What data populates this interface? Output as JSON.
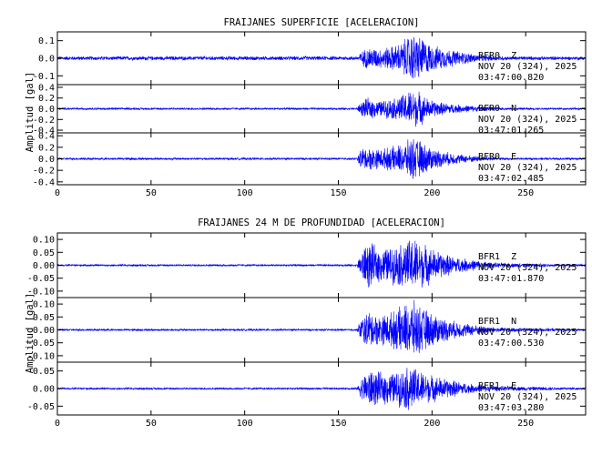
{
  "trace_color": "#0000ff",
  "chart_data": [
    {
      "type": "line",
      "title": "FRAIJANES SUPERFICIE [ACELERACION]",
      "ylabel": "Amplitud [gal]",
      "xlabel": "",
      "xlim": [
        0,
        282
      ],
      "xticks": [
        0,
        50,
        100,
        150,
        200,
        250
      ],
      "grid": false,
      "legend": "none",
      "panels": [
        {
          "station": "BFR0",
          "component": "Z",
          "line1": "BFR0  Z",
          "date": "NOV 20 (324), 2025",
          "time": "03:47:00.820",
          "ylim": [
            -0.15,
            0.15
          ],
          "yticks": [
            -0.1,
            0.0,
            0.1
          ],
          "ytick_labels": [
            "-0.1",
            "0.0",
            "0.1"
          ],
          "background_amplitude": 0.012,
          "envelope": [
            [
              0,
              0.012
            ],
            [
              160,
              0.012
            ],
            [
              162,
              0.04
            ],
            [
              166,
              0.07
            ],
            [
              172,
              0.06
            ],
            [
              180,
              0.08
            ],
            [
              184,
              0.1
            ],
            [
              188,
              0.15
            ],
            [
              192,
              0.15
            ],
            [
              196,
              0.12
            ],
            [
              200,
              0.08
            ],
            [
              208,
              0.06
            ],
            [
              216,
              0.04
            ],
            [
              226,
              0.02
            ],
            [
              240,
              0.012
            ],
            [
              282,
              0.01
            ]
          ]
        },
        {
          "station": "BFR0",
          "component": "N",
          "line1": "BFR0  N",
          "date": "NOV 20 (324), 2025",
          "time": "03:47:01.265",
          "ylim": [
            -0.45,
            0.45
          ],
          "yticks": [
            -0.4,
            -0.2,
            0.0,
            0.2,
            0.4
          ],
          "ytick_labels": [
            "-0.4",
            "-0.2",
            "0.0",
            "0.2",
            "0.4"
          ],
          "background_amplitude": 0.02,
          "envelope": [
            [
              0,
              0.02
            ],
            [
              160,
              0.02
            ],
            [
              162,
              0.14
            ],
            [
              166,
              0.22
            ],
            [
              172,
              0.16
            ],
            [
              180,
              0.22
            ],
            [
              185,
              0.3
            ],
            [
              189,
              0.4
            ],
            [
              193,
              0.36
            ],
            [
              198,
              0.2
            ],
            [
              206,
              0.12
            ],
            [
              216,
              0.08
            ],
            [
              226,
              0.05
            ],
            [
              240,
              0.02
            ],
            [
              282,
              0.02
            ]
          ]
        },
        {
          "station": "BFR0",
          "component": "E",
          "line1": "BFR0  E",
          "date": "NOV 20 (324), 2025",
          "time": "03:47:02.485",
          "ylim": [
            -0.45,
            0.45
          ],
          "yticks": [
            -0.4,
            -0.2,
            0.0,
            0.2,
            0.4
          ],
          "ytick_labels": [
            "-0.4",
            "-0.2",
            "0.0",
            "0.2",
            "0.4"
          ],
          "background_amplitude": 0.02,
          "envelope": [
            [
              0,
              0.02
            ],
            [
              160,
              0.02
            ],
            [
              162,
              0.2
            ],
            [
              166,
              0.22
            ],
            [
              172,
              0.18
            ],
            [
              180,
              0.24
            ],
            [
              186,
              0.3
            ],
            [
              189,
              0.42
            ],
            [
              193,
              0.36
            ],
            [
              198,
              0.24
            ],
            [
              206,
              0.14
            ],
            [
              216,
              0.08
            ],
            [
              226,
              0.05
            ],
            [
              240,
              0.02
            ],
            [
              282,
              0.02
            ]
          ]
        }
      ]
    },
    {
      "type": "line",
      "title": "FRAIJANES 24 M DE PROFUNDIDAD [ACELERACION]",
      "ylabel": "Amplitud [gal]",
      "xlabel": "",
      "xlim": [
        0,
        282
      ],
      "xticks": [
        0,
        50,
        100,
        150,
        200,
        250
      ],
      "grid": false,
      "legend": "none",
      "panels": [
        {
          "station": "BFR1",
          "component": "Z",
          "line1": "BFR1  Z",
          "date": "NOV 20 (324), 2025",
          "time": "03:47:01.870",
          "ylim": [
            -0.125,
            0.125
          ],
          "yticks": [
            -0.1,
            -0.05,
            0.0,
            0.05,
            0.1
          ],
          "ytick_labels": [
            "-0.10",
            "-0.05",
            "0.00",
            "0.05",
            "0.10"
          ],
          "background_amplitude": 0.004,
          "envelope": [
            [
              0,
              0.004
            ],
            [
              160,
              0.004
            ],
            [
              162,
              0.06
            ],
            [
              166,
              0.1
            ],
            [
              172,
              0.07
            ],
            [
              180,
              0.08
            ],
            [
              186,
              0.1
            ],
            [
              190,
              0.12
            ],
            [
              194,
              0.1
            ],
            [
              200,
              0.07
            ],
            [
              210,
              0.04
            ],
            [
              220,
              0.025
            ],
            [
              235,
              0.01
            ],
            [
              282,
              0.004
            ]
          ]
        },
        {
          "station": "BFR1",
          "component": "N",
          "line1": "BFR1  N",
          "date": "NOV 20 (324), 2025",
          "time": "03:47:00.530",
          "ylim": [
            -0.125,
            0.125
          ],
          "yticks": [
            -0.1,
            -0.05,
            0.0,
            0.05,
            0.1
          ],
          "ytick_labels": [
            "-0.10",
            "-0.05",
            "0.00",
            "0.05",
            "0.10"
          ],
          "background_amplitude": 0.004,
          "envelope": [
            [
              0,
              0.004
            ],
            [
              160,
              0.004
            ],
            [
              162,
              0.05
            ],
            [
              166,
              0.08
            ],
            [
              172,
              0.06
            ],
            [
              180,
              0.08
            ],
            [
              186,
              0.11
            ],
            [
              190,
              0.12
            ],
            [
              194,
              0.1
            ],
            [
              200,
              0.07
            ],
            [
              210,
              0.04
            ],
            [
              220,
              0.025
            ],
            [
              235,
              0.01
            ],
            [
              282,
              0.004
            ]
          ]
        },
        {
          "station": "BFR1",
          "component": "E",
          "line1": "BFR1  E",
          "date": "NOV 20 (324), 2025",
          "time": "03:47:03.280",
          "ylim": [
            -0.075,
            0.075
          ],
          "yticks": [
            -0.05,
            0.0,
            0.05
          ],
          "ytick_labels": [
            "-0.05",
            "0.00",
            "0.05"
          ],
          "background_amplitude": 0.003,
          "envelope": [
            [
              0,
              0.003
            ],
            [
              160,
              0.003
            ],
            [
              162,
              0.03
            ],
            [
              166,
              0.06
            ],
            [
              172,
              0.05
            ],
            [
              180,
              0.05
            ],
            [
              185,
              0.06
            ],
            [
              188,
              0.075
            ],
            [
              192,
              0.06
            ],
            [
              198,
              0.045
            ],
            [
              208,
              0.03
            ],
            [
              220,
              0.015
            ],
            [
              235,
              0.008
            ],
            [
              282,
              0.003
            ]
          ]
        }
      ]
    }
  ]
}
